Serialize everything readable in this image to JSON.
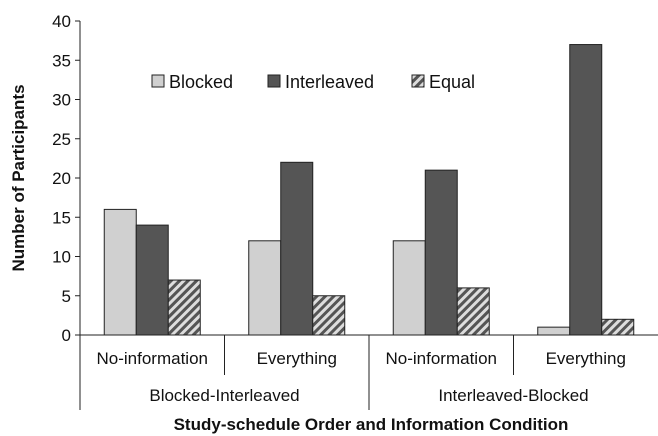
{
  "chart_data": {
    "type": "bar",
    "title": "",
    "xlabel": "Study-schedule Order and Information Condition",
    "ylabel": "Number of Participants",
    "ylim": [
      0,
      40
    ],
    "yticks": [
      "0",
      "5",
      "10",
      "15",
      "20",
      "25",
      "30",
      "35",
      "40"
    ],
    "grid": false,
    "legend_position": "top-left",
    "groups": [
      {
        "label": "Blocked-Interleaved",
        "categories": [
          "No-information",
          "Everything"
        ]
      },
      {
        "label": "Interleaved-Blocked",
        "categories": [
          "No-information",
          "Everything"
        ]
      }
    ],
    "categories": [
      "No-information",
      "Everything",
      "No-information",
      "Everything"
    ],
    "series": [
      {
        "name": "Blocked",
        "values": [
          16,
          12,
          12,
          1
        ],
        "color": "#d0d0d0",
        "pattern": "solid"
      },
      {
        "name": "Interleaved",
        "values": [
          14,
          22,
          21,
          37
        ],
        "color": "#555555",
        "pattern": "solid"
      },
      {
        "name": "Equal",
        "values": [
          7,
          5,
          6,
          2
        ],
        "color": "#666666",
        "pattern": "hatched"
      }
    ]
  }
}
